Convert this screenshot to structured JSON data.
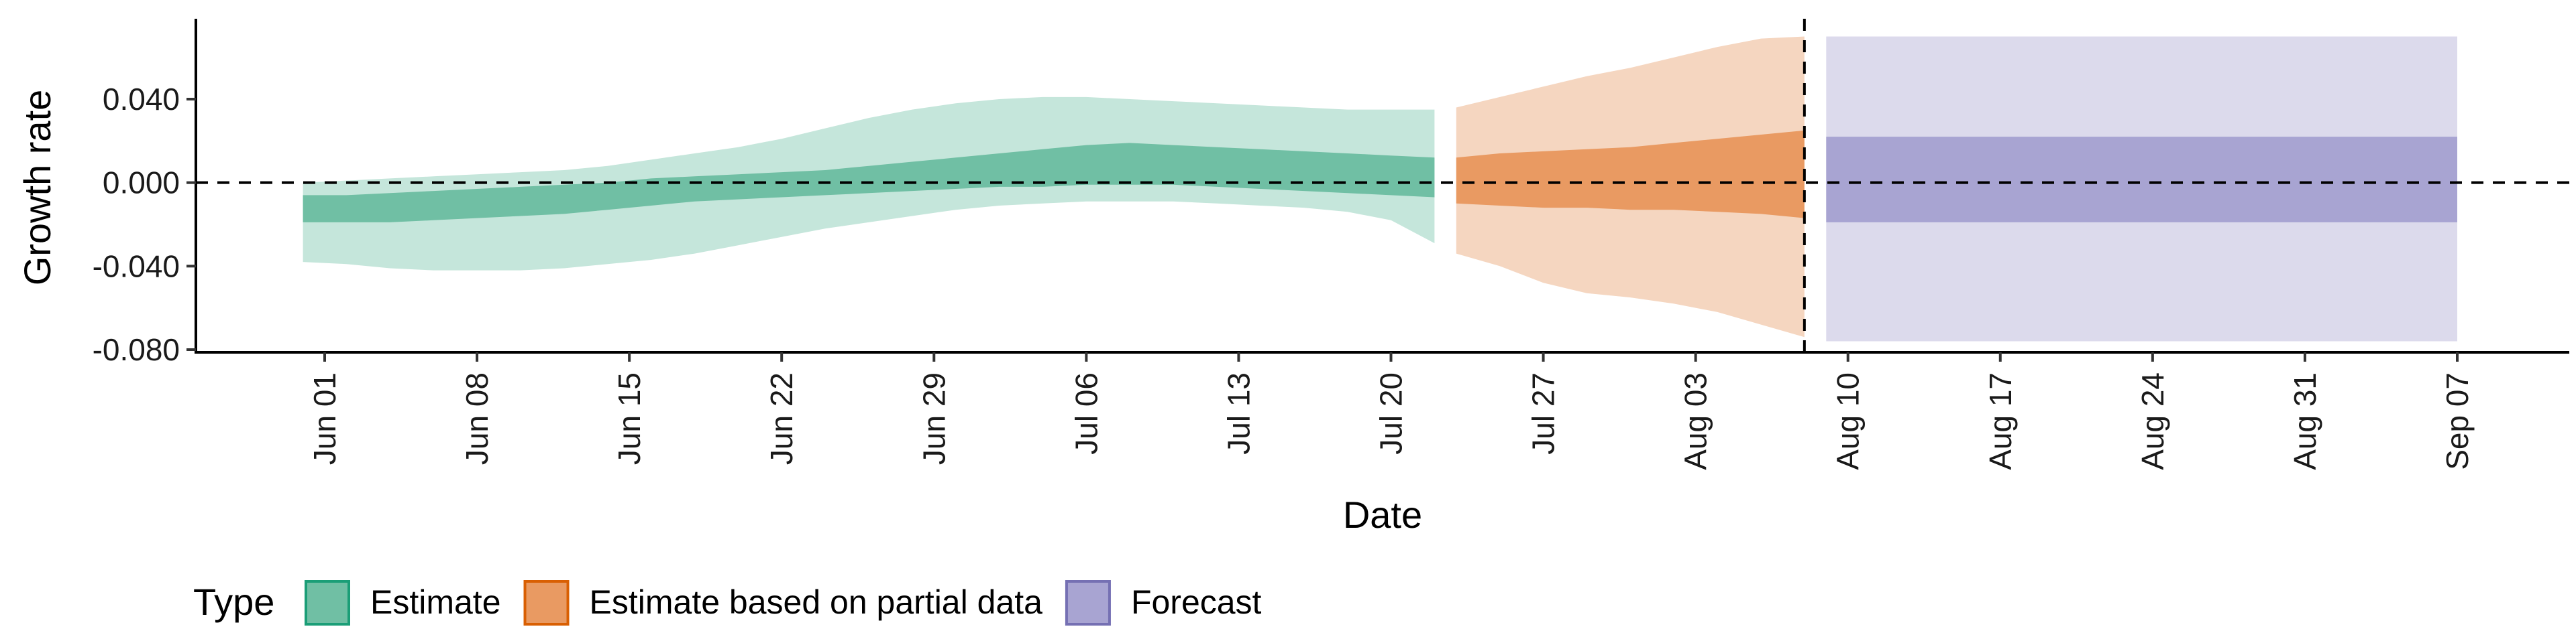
{
  "chart_data": {
    "type": "area",
    "xlabel": "Date",
    "ylabel": "Growth rate",
    "x_axis_type": "date",
    "x_range": [
      "2021-05-25",
      "2021-09-14"
    ],
    "ylim": [
      -0.082,
      0.076
    ],
    "y_ticks": [
      0.04,
      0.0,
      -0.04,
      -0.08
    ],
    "y_tick_labels": [
      "0.040",
      "0.000",
      "-0.040",
      "-0.080"
    ],
    "x_ticks": [
      "2021-06-01",
      "2021-06-08",
      "2021-06-15",
      "2021-06-22",
      "2021-06-29",
      "2021-07-06",
      "2021-07-13",
      "2021-07-20",
      "2021-07-27",
      "2021-08-03",
      "2021-08-10",
      "2021-08-17",
      "2021-08-24",
      "2021-08-31",
      "2021-09-07"
    ],
    "x_tick_labels": [
      "Jun 01",
      "Jun 08",
      "Jun 15",
      "Jun 22",
      "Jun 29",
      "Jul 06",
      "Jul 13",
      "Jul 20",
      "Jul 27",
      "Aug 03",
      "Aug 10",
      "Aug 17",
      "Aug 24",
      "Aug 31",
      "Sep 07"
    ],
    "reference_line_y": 0.0,
    "forecast_start_line": "2021-08-08",
    "grid": false,
    "legend": {
      "title": "Type",
      "position": "bottom-left",
      "items": [
        {
          "label": "Estimate",
          "fill": "#70bfa4",
          "stroke": "#1b9e77"
        },
        {
          "label": "Estimate based on partial data",
          "fill": "#e99a62",
          "stroke": "#d95f02"
        },
        {
          "label": "Forecast",
          "fill": "#a8a4d2",
          "stroke": "#7570b3"
        }
      ]
    },
    "series": [
      {
        "name": "Estimate",
        "dark_color": "#70bfa4",
        "light_color": "#c5e6db",
        "dates": [
          "2021-05-31",
          "2021-06-02",
          "2021-06-04",
          "2021-06-06",
          "2021-06-08",
          "2021-06-10",
          "2021-06-12",
          "2021-06-14",
          "2021-06-16",
          "2021-06-18",
          "2021-06-20",
          "2021-06-22",
          "2021-06-24",
          "2021-06-26",
          "2021-06-28",
          "2021-06-30",
          "2021-07-02",
          "2021-07-04",
          "2021-07-06",
          "2021-07-08",
          "2021-07-10",
          "2021-07-12",
          "2021-07-14",
          "2021-07-16",
          "2021-07-18",
          "2021-07-20",
          "2021-07-22"
        ],
        "outer_lower": [
          -0.038,
          -0.039,
          -0.041,
          -0.042,
          -0.042,
          -0.042,
          -0.041,
          -0.039,
          -0.037,
          -0.034,
          -0.03,
          -0.026,
          -0.022,
          -0.019,
          -0.016,
          -0.013,
          -0.011,
          -0.01,
          -0.009,
          -0.009,
          -0.009,
          -0.01,
          -0.011,
          -0.012,
          -0.014,
          -0.018,
          -0.029
        ],
        "inner_lower": [
          -0.019,
          -0.019,
          -0.019,
          -0.018,
          -0.017,
          -0.016,
          -0.015,
          -0.013,
          -0.011,
          -0.009,
          -0.008,
          -0.007,
          -0.006,
          -0.005,
          -0.004,
          -0.003,
          -0.002,
          -0.002,
          -0.001,
          -0.001,
          -0.001,
          -0.002,
          -0.003,
          -0.004,
          -0.005,
          -0.006,
          -0.007
        ],
        "inner_upper": [
          -0.006,
          -0.006,
          -0.005,
          -0.004,
          -0.003,
          -0.002,
          -0.001,
          0.0,
          0.002,
          0.003,
          0.004,
          0.005,
          0.006,
          0.008,
          0.01,
          0.012,
          0.014,
          0.016,
          0.018,
          0.019,
          0.018,
          0.017,
          0.016,
          0.015,
          0.014,
          0.013,
          0.012
        ],
        "outer_upper": [
          0.0,
          0.001,
          0.002,
          0.003,
          0.004,
          0.005,
          0.006,
          0.008,
          0.011,
          0.014,
          0.017,
          0.021,
          0.026,
          0.031,
          0.035,
          0.038,
          0.04,
          0.041,
          0.041,
          0.04,
          0.039,
          0.038,
          0.037,
          0.036,
          0.035,
          0.035,
          0.035
        ]
      },
      {
        "name": "Estimate based on partial data",
        "dark_color": "#e99a62",
        "light_color": "#f5d6c0",
        "dates": [
          "2021-07-23",
          "2021-07-25",
          "2021-07-27",
          "2021-07-29",
          "2021-07-31",
          "2021-08-02",
          "2021-08-04",
          "2021-08-06",
          "2021-08-08"
        ],
        "outer_lower": [
          -0.034,
          -0.04,
          -0.048,
          -0.053,
          -0.055,
          -0.058,
          -0.062,
          -0.068,
          -0.074
        ],
        "inner_lower": [
          -0.01,
          -0.011,
          -0.012,
          -0.012,
          -0.013,
          -0.013,
          -0.014,
          -0.015,
          -0.017
        ],
        "inner_upper": [
          0.012,
          0.014,
          0.015,
          0.016,
          0.017,
          0.019,
          0.021,
          0.023,
          0.025
        ],
        "outer_upper": [
          0.036,
          0.041,
          0.046,
          0.051,
          0.055,
          0.06,
          0.065,
          0.069,
          0.07
        ]
      },
      {
        "name": "Forecast",
        "dark_color": "#a8a4d2",
        "light_color": "#dcdaec",
        "dates": [
          "2021-08-09",
          "2021-09-07"
        ],
        "outer_lower": [
          -0.076,
          -0.076
        ],
        "inner_lower": [
          -0.019,
          -0.019
        ],
        "inner_upper": [
          0.022,
          0.022
        ],
        "outer_upper": [
          0.07,
          0.07
        ]
      }
    ]
  }
}
